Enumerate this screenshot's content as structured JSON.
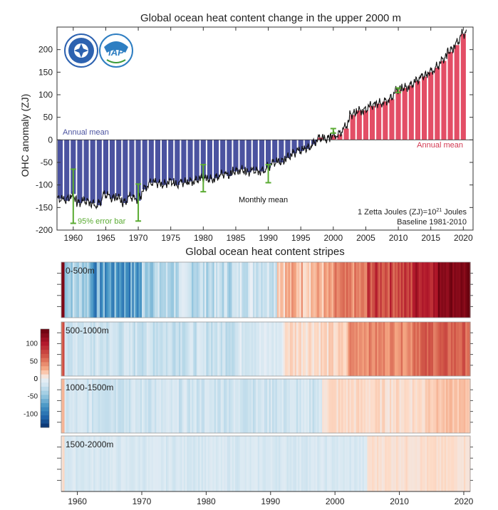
{
  "chart_data": [
    {
      "type": "bar",
      "title": "Global ocean heat content change in the upper 2000 m",
      "ylabel": "OHC anomaly (ZJ)",
      "xlim": [
        1957.5,
        2021.5
      ],
      "ylim": [
        -200,
        250
      ],
      "yticks": [
        -200,
        -150,
        -100,
        -50,
        0,
        50,
        100,
        150,
        200
      ],
      "xticks": [
        1960,
        1965,
        1970,
        1975,
        1980,
        1985,
        1990,
        1995,
        2000,
        2005,
        2010,
        2015,
        2020
      ],
      "series": [
        {
          "name": "Annual mean",
          "years": [
            1958,
            1959,
            1960,
            1961,
            1962,
            1963,
            1964,
            1965,
            1966,
            1967,
            1968,
            1969,
            1970,
            1971,
            1972,
            1973,
            1974,
            1975,
            1976,
            1977,
            1978,
            1979,
            1980,
            1981,
            1982,
            1983,
            1984,
            1985,
            1986,
            1987,
            1988,
            1989,
            1990,
            1991,
            1992,
            1993,
            1994,
            1995,
            1996,
            1997,
            1998,
            1999,
            2000,
            2001,
            2002,
            2003,
            2004,
            2005,
            2006,
            2007,
            2008,
            2009,
            2010,
            2011,
            2012,
            2013,
            2014,
            2015,
            2016,
            2017,
            2018,
            2019,
            2020
          ],
          "values": [
            -130,
            -135,
            -120,
            -140,
            -135,
            -140,
            -145,
            -120,
            -130,
            -125,
            -140,
            -125,
            -135,
            -110,
            -95,
            -95,
            -100,
            -90,
            -100,
            -95,
            -92,
            -90,
            -85,
            -87,
            -85,
            -75,
            -80,
            -70,
            -65,
            -72,
            -68,
            -70,
            -62,
            -50,
            -50,
            -40,
            -30,
            -25,
            -20,
            -10,
            5,
            0,
            10,
            12,
            25,
            55,
            65,
            65,
            75,
            80,
            85,
            90,
            110,
            115,
            120,
            130,
            140,
            150,
            160,
            175,
            195,
            210,
            235
          ],
          "colors": {
            "negative": "#4b53a0",
            "positive": "#e34e66"
          }
        },
        {
          "name": "Monthly mean",
          "color": "#111111"
        },
        {
          "name": "95% error bar",
          "color": "#5aab32",
          "bars": [
            {
              "year": 1960,
              "low": -185,
              "high": -65
            },
            {
              "year": 1970,
              "low": -180,
              "high": -98
            },
            {
              "year": 1980,
              "low": -115,
              "high": -55
            },
            {
              "year": 1990,
              "low": -95,
              "high": -55
            },
            {
              "year": 2000,
              "low": 15,
              "high": 25
            },
            {
              "year": 2010,
              "low": 105,
              "high": 115
            }
          ]
        }
      ],
      "labels": {
        "annual_left": "Annual mean",
        "annual_right": "Annual mean",
        "monthly": "Monthly mean",
        "error": "95% error bar",
        "note1_pre": "1 Zetta Joules (ZJ)=10",
        "note1_sup": "21",
        "note1_post": " Joules",
        "note2": "Baseline 1981-2010"
      }
    },
    {
      "type": "heatmap",
      "title": "Global ocean heat content stripes",
      "xlim": [
        1957.5,
        2021
      ],
      "xticks": [
        1960,
        1970,
        1980,
        1990,
        2000,
        2010,
        2020
      ],
      "colorbar": {
        "range": [
          -140,
          140
        ],
        "ticks": [
          100,
          50,
          0,
          -50,
          -100
        ],
        "zero_label": "0"
      },
      "panels": [
        {
          "label": "0-500m",
          "start": 1958,
          "step": 0.25,
          "segments": [
            {
              "from": 1958,
              "to": 1962,
              "min": -60,
              "max": -15
            },
            {
              "from": 1962,
              "to": 1970,
              "min": -110,
              "max": -40
            },
            {
              "from": 1970,
              "to": 1975,
              "min": -60,
              "max": -10
            },
            {
              "from": 1975,
              "to": 1985,
              "min": -50,
              "max": -5
            },
            {
              "from": 1985,
              "to": 1991,
              "min": -35,
              "max": 5
            },
            {
              "from": 1991,
              "to": 2000,
              "min": 5,
              "max": 45
            },
            {
              "from": 2000,
              "to": 2005,
              "min": 25,
              "max": 60
            },
            {
              "from": 2005,
              "to": 2012,
              "min": 50,
              "max": 100
            },
            {
              "from": 2012,
              "to": 2016,
              "min": 85,
              "max": 120
            },
            {
              "from": 2016,
              "to": 2021,
              "min": 115,
              "max": 140
            }
          ]
        },
        {
          "label": "500-1000m",
          "start": 1958,
          "step": 0.25,
          "segments": [
            {
              "from": 1958,
              "to": 1962,
              "min": -30,
              "max": -10
            },
            {
              "from": 1962,
              "to": 1985,
              "min": -35,
              "max": -8
            },
            {
              "from": 1985,
              "to": 1992,
              "min": -25,
              "max": 0
            },
            {
              "from": 1992,
              "to": 2002,
              "min": 3,
              "max": 20
            },
            {
              "from": 2002,
              "to": 2012,
              "min": 30,
              "max": 55
            },
            {
              "from": 2012,
              "to": 2021,
              "min": 45,
              "max": 75
            }
          ]
        },
        {
          "label": "1000-1500m",
          "start": 1958,
          "step": 0.25,
          "segments": [
            {
              "from": 1958,
              "to": 1998,
              "min": -30,
              "max": -8
            },
            {
              "from": 1998,
              "to": 2014,
              "min": 4,
              "max": 16
            },
            {
              "from": 2014,
              "to": 2021,
              "min": 12,
              "max": 25
            }
          ]
        },
        {
          "label": "1500-2000m",
          "start": 1958,
          "step": 0.25,
          "segments": [
            {
              "from": 1958,
              "to": 2005,
              "min": -22,
              "max": -8
            },
            {
              "from": 2005,
              "to": 2021,
              "min": 5,
              "max": 12
            }
          ]
        }
      ]
    }
  ]
}
